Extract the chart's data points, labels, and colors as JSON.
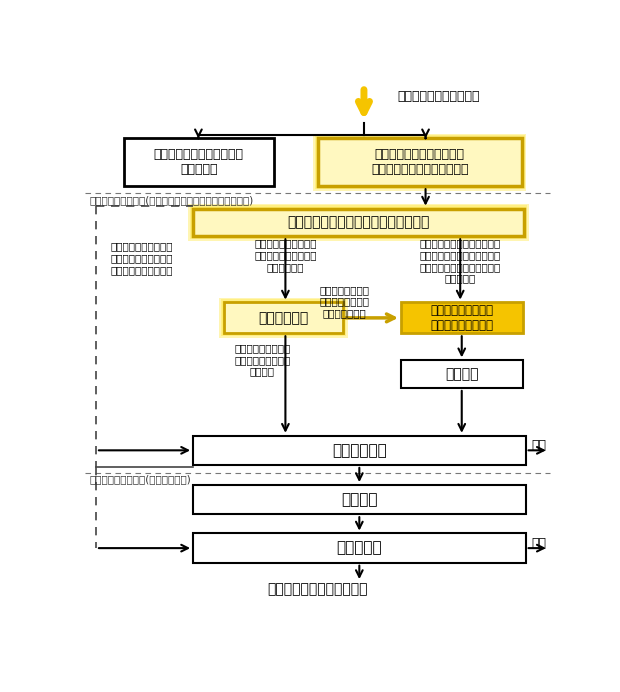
{
  "fig_width": 6.2,
  "fig_height": 6.92,
  "dpi": 100,
  "bg_color": "#ffffff",
  "yellow_fill": "#F5C400",
  "yellow_light": "#FFF8C0",
  "yellow_border": "#C8A000",
  "yellow_glow": "#FFE840",
  "white_fill": "#ffffff",
  "black": "#000000",
  "dark_gray": "#444444",
  "dash_color": "#777777",
  "top_arrow_label": "各文献からの総合的判断",
  "box1_text": "現時点では試験対象物質と\nしない物質",
  "box2_text": "内分泌かく乱作用に関する\n試験対象物質となり得る物質",
  "section1_label": "有害性評価第１段階(内分泌系に対する作用の有無を確認)",
  "box3_text": "信頼性評価により得られた知見の整理",
  "box4_text": "試験管内試験",
  "box5_text": "生物試験を実施する\n物質の優先順位付け",
  "box6_text": "生物試験",
  "box7_text": "第１段階評価",
  "horikomi1": "保留",
  "section2_label": "有害性評価第２段階(有害性の確認)",
  "box8_text": "生物試験",
  "box9_text": "有害性評価",
  "horikomi2": "保留",
  "bottom_label": "リスク評価の枠組みへ進む",
  "note_left": "試験管内試験及び生物\n試験に関する十分な情\n報が得られている物質",
  "note_mid_top": "試験管内試験に関する\n情報が十分には得られ\nていない物質",
  "note_right_top": "試験管内試験に関する十分な\n情報は得られているが、生物\n試験に関する情報が得られて\nいない物質",
  "note_mid_bot": "生物試験に関する\n十分な情報が得ら\nれていない物質",
  "note_left_bot": "生物試験に関する十\n分な情報が得られて\nいる物質"
}
